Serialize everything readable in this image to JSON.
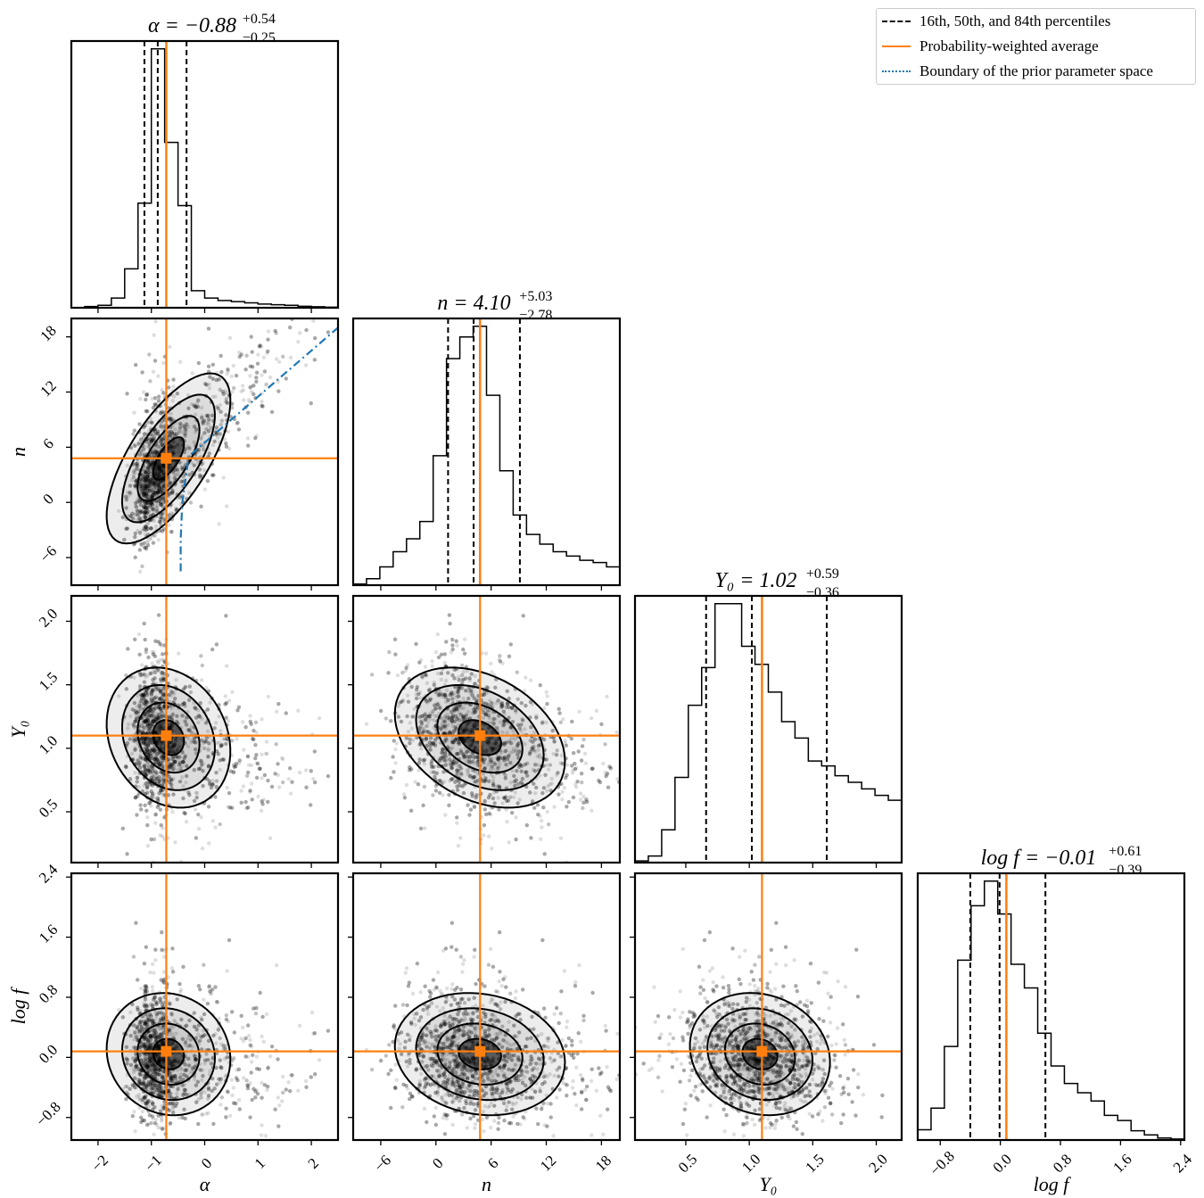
{
  "chart_data": {
    "type": "scatter",
    "subtype": "corner-plot",
    "parameters": [
      {
        "symbol": "α",
        "median": "−0.88",
        "plus": "+0.54",
        "minus": "−0.25",
        "ticks": [
          "−2",
          "−1",
          "0",
          "1",
          "2"
        ],
        "tick_values": [
          -2,
          -1,
          0,
          1,
          2
        ],
        "range": [
          -2.5,
          2.5
        ],
        "xlabel": "α",
        "ylabel": ""
      },
      {
        "symbol": "n",
        "median": "4.10",
        "plus": "+5.03",
        "minus": "−2.78",
        "ticks": [
          "−6",
          "0",
          "6",
          "12",
          "18"
        ],
        "tick_values": [
          -6,
          0,
          6,
          12,
          18
        ],
        "range": [
          -9,
          20
        ],
        "xlabel": "n",
        "ylabel": "n"
      },
      {
        "symbol": "Y₀",
        "median": "1.02",
        "plus": "+0.59",
        "minus": "−0.36",
        "ticks": [
          "0.5",
          "1.0",
          "1.5",
          "2.0"
        ],
        "tick_values": [
          0.5,
          1.0,
          1.5,
          2.0
        ],
        "range": [
          0.1,
          2.2
        ],
        "xlabel": "Y₀",
        "ylabel": "Y₀"
      },
      {
        "symbol": "log f",
        "median": "−0.01",
        "plus": "+0.61",
        "minus": "−0.39",
        "ticks": [
          "−0.8",
          "0.0",
          "0.8",
          "1.6",
          "2.4"
        ],
        "tick_values": [
          -0.8,
          0.0,
          0.8,
          1.6,
          2.4
        ],
        "range": [
          -1.1,
          2.45
        ],
        "xlabel": "log f",
        "ylabel": "log f"
      }
    ],
    "titles": [
      {
        "lhs": "α = −0.88",
        "sup": "+0.54",
        "sub": "−0.25"
      },
      {
        "lhs": "n = 4.10",
        "sup": "+5.03",
        "sub": "−2.78"
      },
      {
        "lhs": "Y₀ = 1.02",
        "sup": "+0.59",
        "sub": "−0.36"
      },
      {
        "lhs": "log f = −0.01",
        "sup": "+0.61",
        "sub": "−0.39"
      }
    ],
    "percentiles": [
      [
        -1.13,
        -0.88,
        -0.34
      ],
      [
        1.32,
        4.1,
        9.13
      ],
      [
        0.66,
        1.02,
        1.61
      ],
      [
        -0.4,
        -0.01,
        0.6
      ]
    ],
    "weighted_average": [
      -0.72,
      4.8,
      1.1,
      0.08
    ],
    "histograms": [
      {
        "edges": [
          -2.5,
          -2.25,
          -2.0,
          -1.75,
          -1.5,
          -1.25,
          -1.0,
          -0.75,
          -0.5,
          -0.25,
          0.0,
          0.25,
          0.5,
          0.75,
          1.0,
          1.25,
          1.5,
          1.75,
          2.0,
          2.25,
          2.5
        ],
        "counts": [
          0,
          0.1,
          0.2,
          0.8,
          3.2,
          8.6,
          21.3,
          13.6,
          8.4,
          1.4,
          0.8,
          0.6,
          0.5,
          0.4,
          0.3,
          0.25,
          0.2,
          0.12,
          0.08,
          0.05
        ]
      },
      {
        "edges": [
          -9,
          -7.55,
          -6.1,
          -4.65,
          -3.2,
          -1.75,
          -0.3,
          1.15,
          2.6,
          4.05,
          5.5,
          6.95,
          8.4,
          9.85,
          11.3,
          12.75,
          14.2,
          15.65,
          17.1,
          18.55,
          20
        ],
        "counts": [
          0.1,
          0.6,
          1.7,
          3.1,
          4.3,
          5.9,
          12,
          21,
          23,
          24,
          17.6,
          10.6,
          6.5,
          4.7,
          3.8,
          3.1,
          2.7,
          2.3,
          2.1,
          1.7
        ]
      },
      {
        "edges": [
          0.1,
          0.205,
          0.31,
          0.415,
          0.52,
          0.625,
          0.73,
          0.835,
          0.94,
          1.045,
          1.15,
          1.255,
          1.36,
          1.465,
          1.57,
          1.675,
          1.78,
          1.885,
          1.99,
          2.095,
          2.2
        ],
        "counts": [
          0.1,
          0.4,
          2.0,
          5.2,
          9.6,
          11.9,
          15.8,
          15.8,
          13.2,
          12.1,
          10.4,
          8.6,
          7.6,
          6.2,
          5.9,
          5.3,
          4.9,
          4.5,
          4.1,
          3.8
        ]
      },
      {
        "edges": [
          -1.1,
          -0.9225,
          -0.745,
          -0.5675,
          -0.39,
          -0.2125,
          -0.035,
          0.1425,
          0.32,
          0.4975,
          0.675,
          0.8525,
          1.03,
          1.2075,
          1.385,
          1.5625,
          1.74,
          1.9175,
          2.095,
          2.2725,
          2.45
        ],
        "counts": [
          1,
          3.1,
          9.1,
          17.5,
          22.8,
          25.2,
          22,
          17.1,
          14.8,
          10.4,
          7.2,
          5.5,
          4.6,
          3.8,
          2.4,
          1.9,
          0.9,
          0.5,
          0.2,
          0.1
        ]
      }
    ],
    "prior_boundary": {
      "x": [
        -0.45,
        -0.45,
        -0.42,
        -0.36,
        -0.3,
        2.5
      ],
      "y": [
        -7.5,
        -4,
        0,
        2.5,
        5,
        19.0
      ]
    },
    "legend": {
      "position": "top-right",
      "entries": [
        {
          "label": "16th, 50th, and 84th percentiles",
          "style": "dashed",
          "color": "#000000"
        },
        {
          "label": "Probability-weighted average",
          "style": "solid",
          "color": "#ff7f0e"
        },
        {
          "label": "Boundary of the prior parameter space",
          "style": "dotted",
          "color": "#1f77b4"
        }
      ]
    },
    "colors": {
      "percentile": "#000000",
      "average": "#ff7f0e",
      "prior": "#1f77b4",
      "samples": "#000000"
    },
    "grid": false
  }
}
